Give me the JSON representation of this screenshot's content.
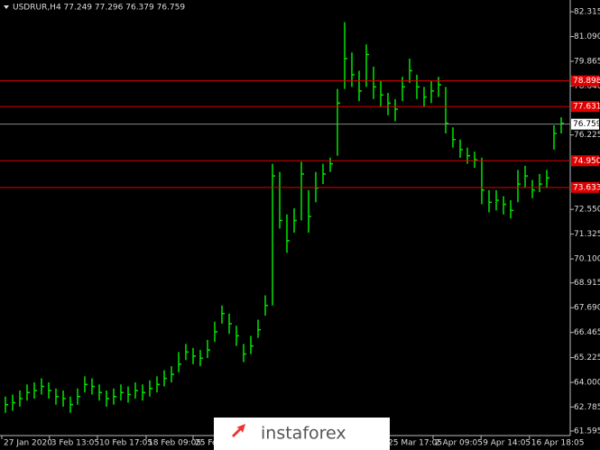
{
  "chart_data": {
    "type": "ohlc",
    "title": "USDRUR,H4 77.249 77.296 76.379 76.759",
    "color": "#00e600",
    "level_color": "#e00000",
    "ylim": [
      61.372,
      82.894
    ],
    "yticks": [
      82.315,
      {
        "value": 81.09,
        "label": "81.090"
      },
      79.865,
      {
        "value": 78.64,
        "label": "78.640"
      },
      76.225,
      {
        "value": 72.55,
        "label": "72.550"
      },
      71.325,
      {
        "value": 70.1,
        "label": "70.100"
      },
      68.915,
      {
        "value": 67.69,
        "label": "67.690"
      },
      66.465,
      65.225,
      {
        "value": 64,
        "label": "64.000"
      },
      62.785,
      61.595
    ],
    "levels": [
      78.898,
      77.631,
      74.95,
      73.633
    ],
    "level_labels": [
      "78.898",
      "77.631",
      "74.950",
      "73.633"
    ],
    "current_price": 76.759,
    "xlim": [
      -0.75,
      78.25
    ],
    "xticks": [
      {
        "value": -0.5,
        "label": "27 Jan 2020"
      },
      {
        "value": 6.1,
        "label": "3 Feb 13:05"
      },
      {
        "value": 12.75,
        "label": "10 Feb 17:05"
      },
      {
        "value": 19.5,
        "label": "18 Feb 09:05"
      },
      {
        "value": 26,
        "label": "25 Feb"
      },
      {
        "value": 52.75,
        "label": "25 Mar 17:05"
      },
      {
        "value": 59.25,
        "label": "2 Apr 09:05"
      },
      {
        "value": 65.9,
        "label": "9 Apr 14:05"
      },
      {
        "value": 72.6,
        "label": "16 Apr 18:05"
      }
    ],
    "high": [
      63.3,
      63.4,
      63.6,
      63.9,
      64.0,
      64.2,
      64.0,
      63.7,
      63.6,
      63.3,
      63.7,
      64.3,
      64.2,
      63.9,
      63.6,
      63.7,
      63.9,
      63.8,
      64.0,
      63.9,
      64.1,
      64.3,
      64.6,
      64.8,
      65.5,
      65.9,
      65.7,
      65.6,
      66.1,
      67.0,
      67.8,
      67.4,
      66.8,
      65.9,
      66.3,
      67.1,
      68.3,
      74.8,
      74.4,
      72.3,
      72.6,
      74.9,
      73.5,
      74.4,
      74.8,
      75.1,
      78.5,
      81.8,
      80.3,
      79.4,
      80.7,
      79.6,
      78.9,
      78.3,
      78.0,
      79.1,
      80.0,
      79.2,
      78.6,
      78.9,
      79.1,
      78.6,
      76.6,
      76.0,
      75.6,
      75.4,
      75.1,
      73.5,
      73.5,
      73.2,
      73.0,
      74.5,
      74.7,
      74.0,
      74.3,
      74.5,
      76.7,
      77.1
    ],
    "low": [
      62.5,
      62.6,
      62.8,
      63.1,
      63.2,
      63.4,
      63.2,
      62.9,
      62.8,
      62.5,
      62.9,
      63.5,
      63.4,
      63.1,
      62.8,
      62.9,
      63.1,
      63.0,
      63.2,
      63.1,
      63.3,
      63.5,
      63.8,
      64.0,
      64.5,
      65.1,
      64.9,
      64.8,
      65.2,
      66.0,
      66.9,
      66.4,
      65.8,
      65.0,
      65.4,
      66.2,
      67.3,
      67.8,
      71.6,
      70.4,
      71.4,
      72.0,
      71.4,
      72.9,
      73.8,
      74.4,
      75.2,
      78.5,
      78.6,
      77.9,
      78.6,
      78.0,
      77.6,
      77.2,
      76.9,
      77.9,
      78.8,
      78.0,
      77.6,
      77.8,
      78.1,
      76.3,
      75.6,
      75.1,
      74.8,
      74.6,
      72.8,
      72.4,
      72.5,
      72.3,
      72.1,
      72.9,
      73.6,
      73.1,
      73.4,
      73.6,
      75.5,
      76.3
    ],
    "close": [
      62.9,
      63.0,
      63.2,
      63.5,
      63.6,
      63.8,
      63.6,
      63.3,
      63.2,
      62.9,
      63.3,
      63.9,
      63.8,
      63.5,
      63.2,
      63.3,
      63.5,
      63.4,
      63.6,
      63.5,
      63.7,
      63.9,
      64.2,
      64.4,
      64.9,
      65.5,
      65.3,
      65.2,
      65.6,
      66.5,
      67.4,
      66.9,
      66.3,
      65.4,
      65.8,
      66.6,
      67.8,
      74.2,
      72.0,
      71.0,
      72.0,
      74.3,
      72.2,
      73.6,
      74.3,
      74.8,
      77.8,
      80.0,
      79.2,
      78.4,
      80.2,
      78.6,
      78.2,
      77.8,
      77.5,
      78.6,
      79.4,
      78.6,
      78.1,
      78.4,
      78.7,
      76.8,
      76.0,
      75.5,
      75.2,
      75.0,
      73.5,
      72.9,
      73.0,
      72.8,
      72.5,
      73.8,
      74.2,
      73.5,
      73.8,
      74.1,
      76.3,
      76.8
    ]
  },
  "watermark": "instaforex"
}
